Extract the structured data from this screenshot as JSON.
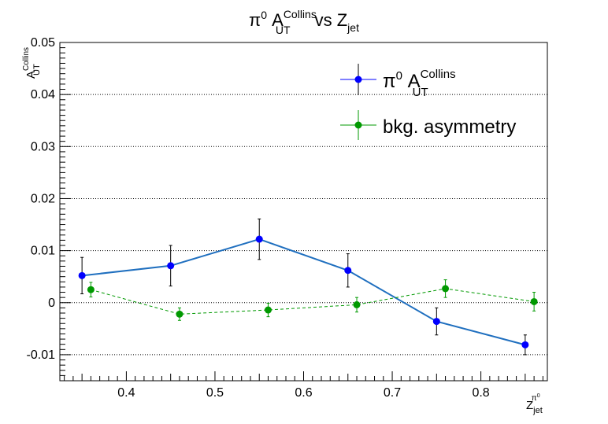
{
  "chart_data": {
    "type": "scatter",
    "title": {
      "main": "π",
      "sup1": "0",
      "mid": " A",
      "sup2": "Collins",
      "sub2": "UT",
      "tail": " vs Z",
      "sub3": "jet"
    },
    "xlabel": {
      "main": "Z",
      "sub": "jet",
      "sup": "π",
      "supsup": "0"
    },
    "ylabel": {
      "main": "A",
      "sub": "UT",
      "sup": "Collins"
    },
    "xlim": [
      0.325,
      0.875
    ],
    "ylim": [
      -0.015,
      0.05
    ],
    "xticks": [
      "0.4",
      "0.5",
      "0.6",
      "0.7",
      "0.8"
    ],
    "yticks": [
      "-0.01",
      "0",
      "0.01",
      "0.02",
      "0.03",
      "0.04",
      "0.05"
    ],
    "grid": {
      "x": false,
      "y": true,
      "style": "dotted"
    },
    "legend_position": "top-right",
    "series": [
      {
        "name": {
          "main": "π",
          "sup1": "0",
          "mid": " A",
          "sup2": "Collins",
          "sub2": "UT"
        },
        "color": "#0000ff",
        "line_color": "#1f6fbf",
        "x": [
          0.35,
          0.45,
          0.55,
          0.65,
          0.75,
          0.85
        ],
        "y": [
          0.0052,
          0.0071,
          0.0122,
          0.0062,
          -0.0036,
          -0.0081
        ],
        "yerr": [
          0.0035,
          0.0039,
          0.0039,
          0.0032,
          0.0026,
          0.0019
        ]
      },
      {
        "name": {
          "main": "bkg. asymmetry"
        },
        "color": "#009900",
        "line_color": "#009900",
        "line_style": "dashed",
        "x": [
          0.36,
          0.46,
          0.56,
          0.66,
          0.76,
          0.86
        ],
        "y": [
          0.0025,
          -0.0022,
          -0.0014,
          -0.0004,
          0.0027,
          0.0002
        ],
        "yerr": [
          0.0014,
          0.0012,
          0.0013,
          0.0014,
          0.0017,
          0.0018
        ]
      }
    ]
  }
}
